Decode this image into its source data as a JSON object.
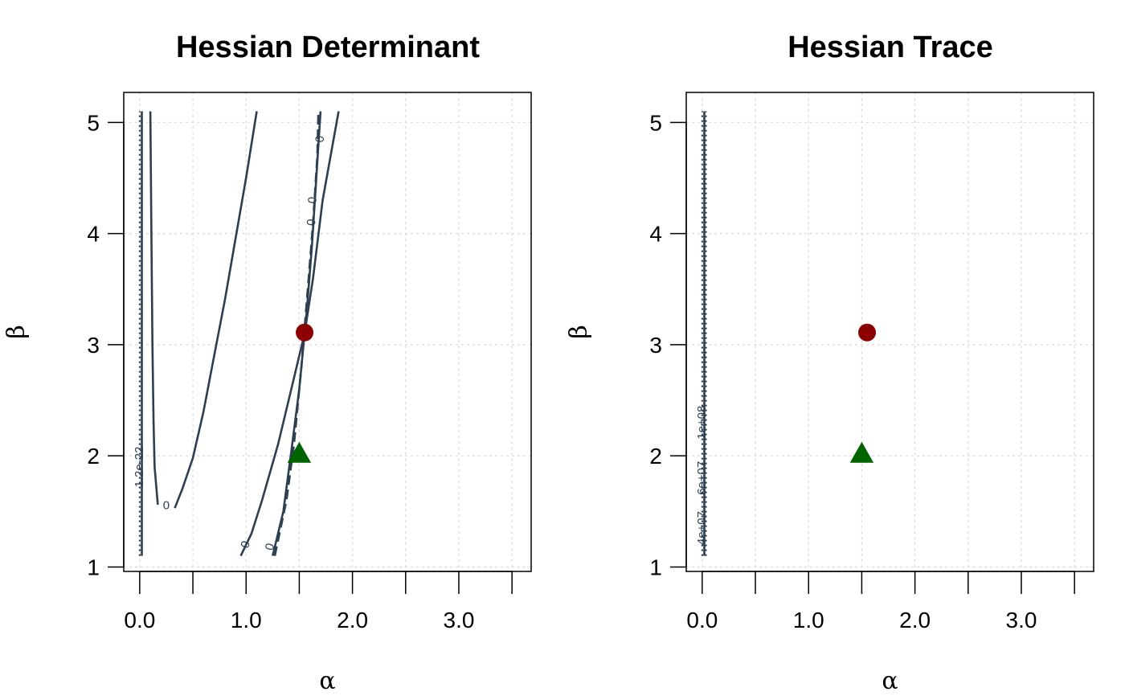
{
  "chart_data": [
    {
      "type": "contour",
      "title": "Hessian Determinant",
      "xlabel": "α",
      "ylabel": "β",
      "xlim": [
        -0.15,
        3.68
      ],
      "ylim": [
        0.96,
        5.27
      ],
      "xticks": [
        0,
        0.5,
        1,
        1.5,
        2,
        2.5,
        3,
        3.5
      ],
      "xtick_labels": [
        "0.0",
        "",
        "1.0",
        "",
        "2.0",
        "",
        "3.0",
        ""
      ],
      "yticks": [
        1,
        2,
        3,
        4,
        5
      ],
      "ytick_labels": [
        "1",
        "2",
        "3",
        "4",
        "5"
      ],
      "grid": true,
      "contour_color": "#2c3e50",
      "contours": [
        {
          "style": "dotted",
          "points": [
            [
              0.0,
              1.1
            ],
            [
              0.0,
              5.1
            ]
          ]
        },
        {
          "style": "solid",
          "points": [
            [
              0.02,
              1.1
            ],
            [
              0.02,
              5.1
            ]
          ]
        },
        {
          "style": "solid",
          "points": [
            [
              0.1,
              5.1
            ],
            [
              0.11,
              4.0
            ],
            [
              0.12,
              3.0
            ],
            [
              0.13,
              2.3
            ],
            [
              0.14,
              1.9
            ],
            [
              0.17,
              1.56
            ]
          ]
        },
        {
          "style": "solid",
          "points": [
            [
              0.33,
              1.53
            ],
            [
              0.4,
              1.7
            ],
            [
              0.5,
              1.98
            ],
            [
              0.6,
              2.4
            ],
            [
              0.7,
              2.9
            ],
            [
              0.8,
              3.4
            ],
            [
              0.9,
              3.95
            ],
            [
              1.0,
              4.5
            ],
            [
              1.1,
              5.1
            ]
          ]
        },
        {
          "style": "solid",
          "points": [
            [
              0.95,
              1.1
            ],
            [
              1.05,
              1.3
            ],
            [
              1.15,
              1.6
            ],
            [
              1.3,
              2.1
            ],
            [
              1.45,
              2.7
            ],
            [
              1.55,
              3.1
            ],
            [
              1.63,
              3.6
            ],
            [
              1.72,
              4.3
            ],
            [
              1.87,
              5.1
            ]
          ]
        },
        {
          "style": "solid",
          "points": [
            [
              1.25,
              1.1
            ],
            [
              1.35,
              1.5
            ],
            [
              1.42,
              2.0
            ],
            [
              1.5,
              2.6
            ],
            [
              1.57,
              3.3
            ],
            [
              1.62,
              3.9
            ],
            [
              1.66,
              4.5
            ],
            [
              1.7,
              5.1
            ]
          ]
        },
        {
          "style": "dashed",
          "points": [
            [
              1.27,
              1.1
            ],
            [
              1.38,
              1.6
            ],
            [
              1.45,
              2.1
            ],
            [
              1.52,
              2.8
            ],
            [
              1.58,
              3.5
            ],
            [
              1.63,
              4.1
            ],
            [
              1.67,
              4.7
            ],
            [
              1.68,
              5.1
            ]
          ]
        }
      ],
      "contour_labels": [
        {
          "text": "1.2e-22",
          "x": 0.0,
          "y": 1.9,
          "rotate": -90
        },
        {
          "text": "0",
          "x": 0.25,
          "y": 1.55,
          "rotate": 0
        },
        {
          "text": "0",
          "x": 1.0,
          "y": 1.2,
          "rotate": -70
        },
        {
          "text": "0",
          "x": 1.23,
          "y": 1.18,
          "rotate": -75
        },
        {
          "text": "0",
          "x": 1.62,
          "y": 4.1,
          "rotate": -85
        },
        {
          "text": "0",
          "x": 1.63,
          "y": 4.3,
          "rotate": -85
        },
        {
          "text": "0",
          "x": 1.7,
          "y": 4.85,
          "rotate": -85
        }
      ],
      "points": [
        {
          "shape": "circle",
          "x": 1.55,
          "y": 3.11,
          "color": "#8b0000"
        },
        {
          "shape": "triangle",
          "x": 1.5,
          "y": 2.01,
          "color": "#006400"
        }
      ]
    },
    {
      "type": "contour",
      "title": "Hessian Trace",
      "xlabel": "α",
      "ylabel": "β",
      "xlim": [
        -0.15,
        3.68
      ],
      "ylim": [
        0.96,
        5.27
      ],
      "xticks": [
        0,
        0.5,
        1,
        1.5,
        2,
        2.5,
        3,
        3.5
      ],
      "xtick_labels": [
        "0.0",
        "",
        "1.0",
        "",
        "2.0",
        "",
        "3.0",
        ""
      ],
      "yticks": [
        1,
        2,
        3,
        4,
        5
      ],
      "ytick_labels": [
        "1",
        "2",
        "3",
        "4",
        "5"
      ],
      "grid": true,
      "contour_color": "#2c3e50",
      "contours": [
        {
          "style": "dotted",
          "points": [
            [
              0.0,
              1.1
            ],
            [
              0.0,
              5.1
            ]
          ]
        },
        {
          "style": "solid",
          "points": [
            [
              0.02,
              1.1
            ],
            [
              0.02,
              5.1
            ]
          ]
        },
        {
          "style": "dotted",
          "points": [
            [
              0.035,
              1.1
            ],
            [
              0.035,
              5.1
            ]
          ]
        }
      ],
      "contour_labels": [
        {
          "text": "4e+07",
          "x": 0.0,
          "y": 1.35,
          "rotate": -90
        },
        {
          "text": "6e+07",
          "x": 0.0,
          "y": 1.8,
          "rotate": -90
        },
        {
          "text": "1e+08",
          "x": 0.0,
          "y": 2.3,
          "rotate": -90
        }
      ],
      "points": [
        {
          "shape": "circle",
          "x": 1.55,
          "y": 3.11,
          "color": "#8b0000"
        },
        {
          "shape": "triangle",
          "x": 1.5,
          "y": 2.01,
          "color": "#006400"
        }
      ]
    }
  ]
}
